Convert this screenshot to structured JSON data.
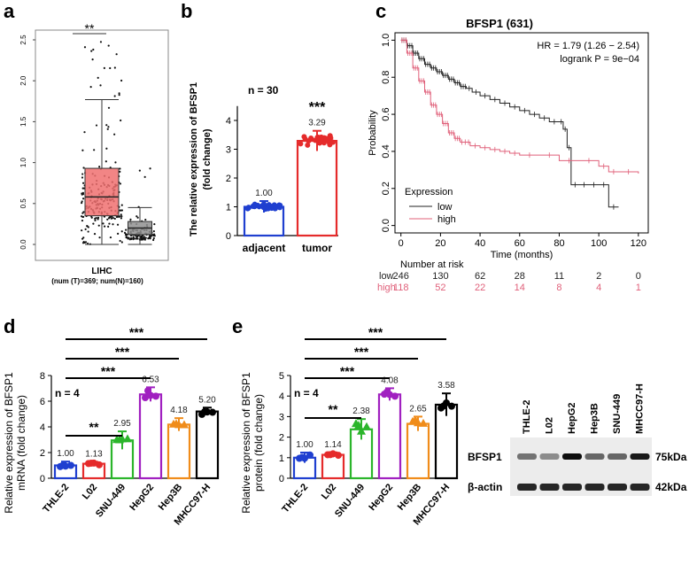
{
  "panel_labels": {
    "a": "a",
    "b": "b",
    "c": "c",
    "d": "d",
    "e": "e"
  },
  "chart_data": [
    {
      "id": "a",
      "type": "box",
      "categories": [
        "T",
        "N"
      ],
      "colors": [
        "#f07070",
        "#909090"
      ],
      "ylim": [
        0,
        2.6
      ],
      "yticks": [
        "0.0",
        "0.5",
        "1.0",
        "1.5",
        "2.0",
        "2.5"
      ],
      "ytick_values": [
        0,
        0.5,
        1.0,
        1.5,
        2.0,
        2.5
      ],
      "box_stats": [
        {
          "name": "T",
          "q1": 0.35,
          "median": 0.58,
          "q3": 0.93,
          "whisker_low": 0.0,
          "whisker_high": 1.77
        },
        {
          "name": "N",
          "q1": 0.12,
          "median": 0.2,
          "q3": 0.28,
          "whisker_low": 0.0,
          "whisker_high": 0.45
        }
      ],
      "n": [
        369,
        160
      ],
      "significance": "**",
      "xlabel": "LIHC",
      "xsublabel": "(num (T)=369; num(N)=160)"
    },
    {
      "id": "b",
      "type": "bar",
      "categories": [
        "adjacent",
        "tumor"
      ],
      "values": [
        1.0,
        3.29
      ],
      "value_labels": [
        "1.00",
        "3.29"
      ],
      "errors": [
        0.2,
        0.35
      ],
      "colors": [
        "#1f3fd0",
        "#e52b2b"
      ],
      "ylim": [
        0,
        4.5
      ],
      "yticks": [
        "0",
        "1",
        "2",
        "3",
        "4"
      ],
      "ytick_values": [
        0,
        1,
        2,
        3,
        4
      ],
      "ylabel_line1": "The relative expression of BFSP1",
      "ylabel_line2": "(fold change)",
      "n_label": "n = 30",
      "significance": "***"
    },
    {
      "id": "c",
      "type": "line",
      "title": "BFSP1 (631)",
      "hr_text": "HR = 1.79 (1.26 − 2.54)",
      "logrank_text": "logrank P = 9e−04",
      "xlabel": "Time (months)",
      "ylabel": "Probability",
      "xlim": [
        -3,
        125
      ],
      "ylim": [
        -0.04,
        1.04
      ],
      "xticks": [
        "0",
        "20",
        "40",
        "60",
        "80",
        "100",
        "120"
      ],
      "xtick_values": [
        0,
        20,
        40,
        60,
        80,
        100,
        120
      ],
      "yticks": [
        "0.0",
        "0.2",
        "0.4",
        "0.6",
        "0.8",
        "1.0"
      ],
      "ytick_values": [
        0,
        0.2,
        0.4,
        0.6,
        0.8,
        1.0
      ],
      "legend_title": "Expression",
      "series": [
        {
          "name": "low",
          "color": "#222222",
          "x": [
            0,
            3,
            6,
            9,
            12,
            15,
            18,
            21,
            24,
            27,
            30,
            33,
            36,
            40,
            45,
            50,
            55,
            60,
            65,
            70,
            75,
            80,
            82,
            84,
            86,
            90,
            95,
            100,
            105,
            110
          ],
          "y": [
            1.0,
            0.97,
            0.93,
            0.9,
            0.87,
            0.85,
            0.83,
            0.81,
            0.79,
            0.77,
            0.75,
            0.74,
            0.72,
            0.7,
            0.68,
            0.66,
            0.64,
            0.62,
            0.6,
            0.58,
            0.56,
            0.56,
            0.52,
            0.42,
            0.22,
            0.22,
            0.22,
            0.22,
            0.1,
            0.1
          ]
        },
        {
          "name": "high",
          "color": "#e0607a",
          "x": [
            0,
            3,
            6,
            9,
            12,
            15,
            18,
            21,
            24,
            27,
            30,
            35,
            40,
            45,
            50,
            55,
            60,
            70,
            80,
            90,
            100,
            105,
            110,
            120
          ],
          "y": [
            1.0,
            0.93,
            0.85,
            0.78,
            0.72,
            0.65,
            0.6,
            0.55,
            0.5,
            0.47,
            0.45,
            0.43,
            0.42,
            0.41,
            0.4,
            0.39,
            0.38,
            0.38,
            0.35,
            0.35,
            0.32,
            0.29,
            0.29,
            0.28
          ]
        }
      ],
      "risk_table": {
        "header": "Number at risk",
        "rows": [
          {
            "label": "low",
            "color": "#222222",
            "values": [
              "246",
              "130",
              "62",
              "28",
              "11",
              "2",
              "0"
            ]
          },
          {
            "label": "high",
            "color": "#e0607a",
            "values": [
              "118",
              "52",
              "22",
              "14",
              "8",
              "4",
              "1"
            ]
          }
        ]
      }
    },
    {
      "id": "d",
      "type": "bar",
      "categories": [
        "THLE-2",
        "L02",
        "SNU-449",
        "HepG2",
        "Hep3B",
        "MHCC97-H"
      ],
      "values": [
        1.0,
        1.13,
        2.95,
        6.53,
        4.18,
        5.2
      ],
      "value_labels": [
        "1.00",
        "1.13",
        "2.95",
        "6.53",
        "4.18",
        "5.20"
      ],
      "errors": [
        0.3,
        0.15,
        0.7,
        0.55,
        0.5,
        0.3
      ],
      "colors": [
        "#1f3fd0",
        "#e52b2b",
        "#2bb52b",
        "#a020c0",
        "#f08c1a",
        "#000000"
      ],
      "ylim": [
        0,
        8
      ],
      "yticks": [
        "0",
        "2",
        "4",
        "6",
        "8"
      ],
      "ytick_values": [
        0,
        2,
        4,
        6,
        8
      ],
      "ylabel_line1": "Relative expression of BFSP1",
      "ylabel_line2": "mRNA (fold change)",
      "n_label": "n = 4",
      "sig_lines": [
        {
          "label": "***",
          "to": "MHCC97-H"
        },
        {
          "label": "***",
          "to": "Hep3B"
        },
        {
          "label": "***",
          "to": "HepG2"
        },
        {
          "label": "**",
          "to": "SNU-449"
        }
      ]
    },
    {
      "id": "e",
      "type": "bar",
      "categories": [
        "THLE-2",
        "L02",
        "SNU-449",
        "HepG2",
        "Hep3B",
        "MHCC97-H"
      ],
      "values": [
        1.0,
        1.14,
        2.38,
        4.08,
        2.65,
        3.58
      ],
      "value_labels": [
        "1.00",
        "1.14",
        "2.38",
        "4.08",
        "2.65",
        "3.58"
      ],
      "errors": [
        0.25,
        0.12,
        0.5,
        0.3,
        0.35,
        0.55
      ],
      "colors": [
        "#1f3fd0",
        "#e52b2b",
        "#2bb52b",
        "#a020c0",
        "#f08c1a",
        "#000000"
      ],
      "ylim": [
        0,
        5
      ],
      "yticks": [
        "0",
        "1",
        "2",
        "3",
        "4",
        "5"
      ],
      "ytick_values": [
        0,
        1,
        2,
        3,
        4,
        5
      ],
      "ylabel_line1": "Relative expression of BFSP1",
      "ylabel_line2": "protein (fold change)",
      "n_label": "n = 4",
      "sig_lines": [
        {
          "label": "***",
          "to": "MHCC97-H"
        },
        {
          "label": "***",
          "to": "Hep3B"
        },
        {
          "label": "***",
          "to": "HepG2"
        },
        {
          "label": "**",
          "to": "SNU-449"
        }
      ]
    }
  ],
  "blot": {
    "lanes": [
      "THLE-2",
      "L02",
      "HepG2",
      "Hep3B",
      "SNU-449",
      "MHCC97-H"
    ],
    "rows": [
      {
        "label": "BFSP1",
        "kda": "75kDa",
        "intensity": [
          0.55,
          0.45,
          0.95,
          0.6,
          0.6,
          0.9
        ]
      },
      {
        "label": "β-actin",
        "kda": "42kDa",
        "intensity": [
          0.85,
          0.85,
          0.85,
          0.85,
          0.85,
          0.85
        ]
      }
    ]
  }
}
